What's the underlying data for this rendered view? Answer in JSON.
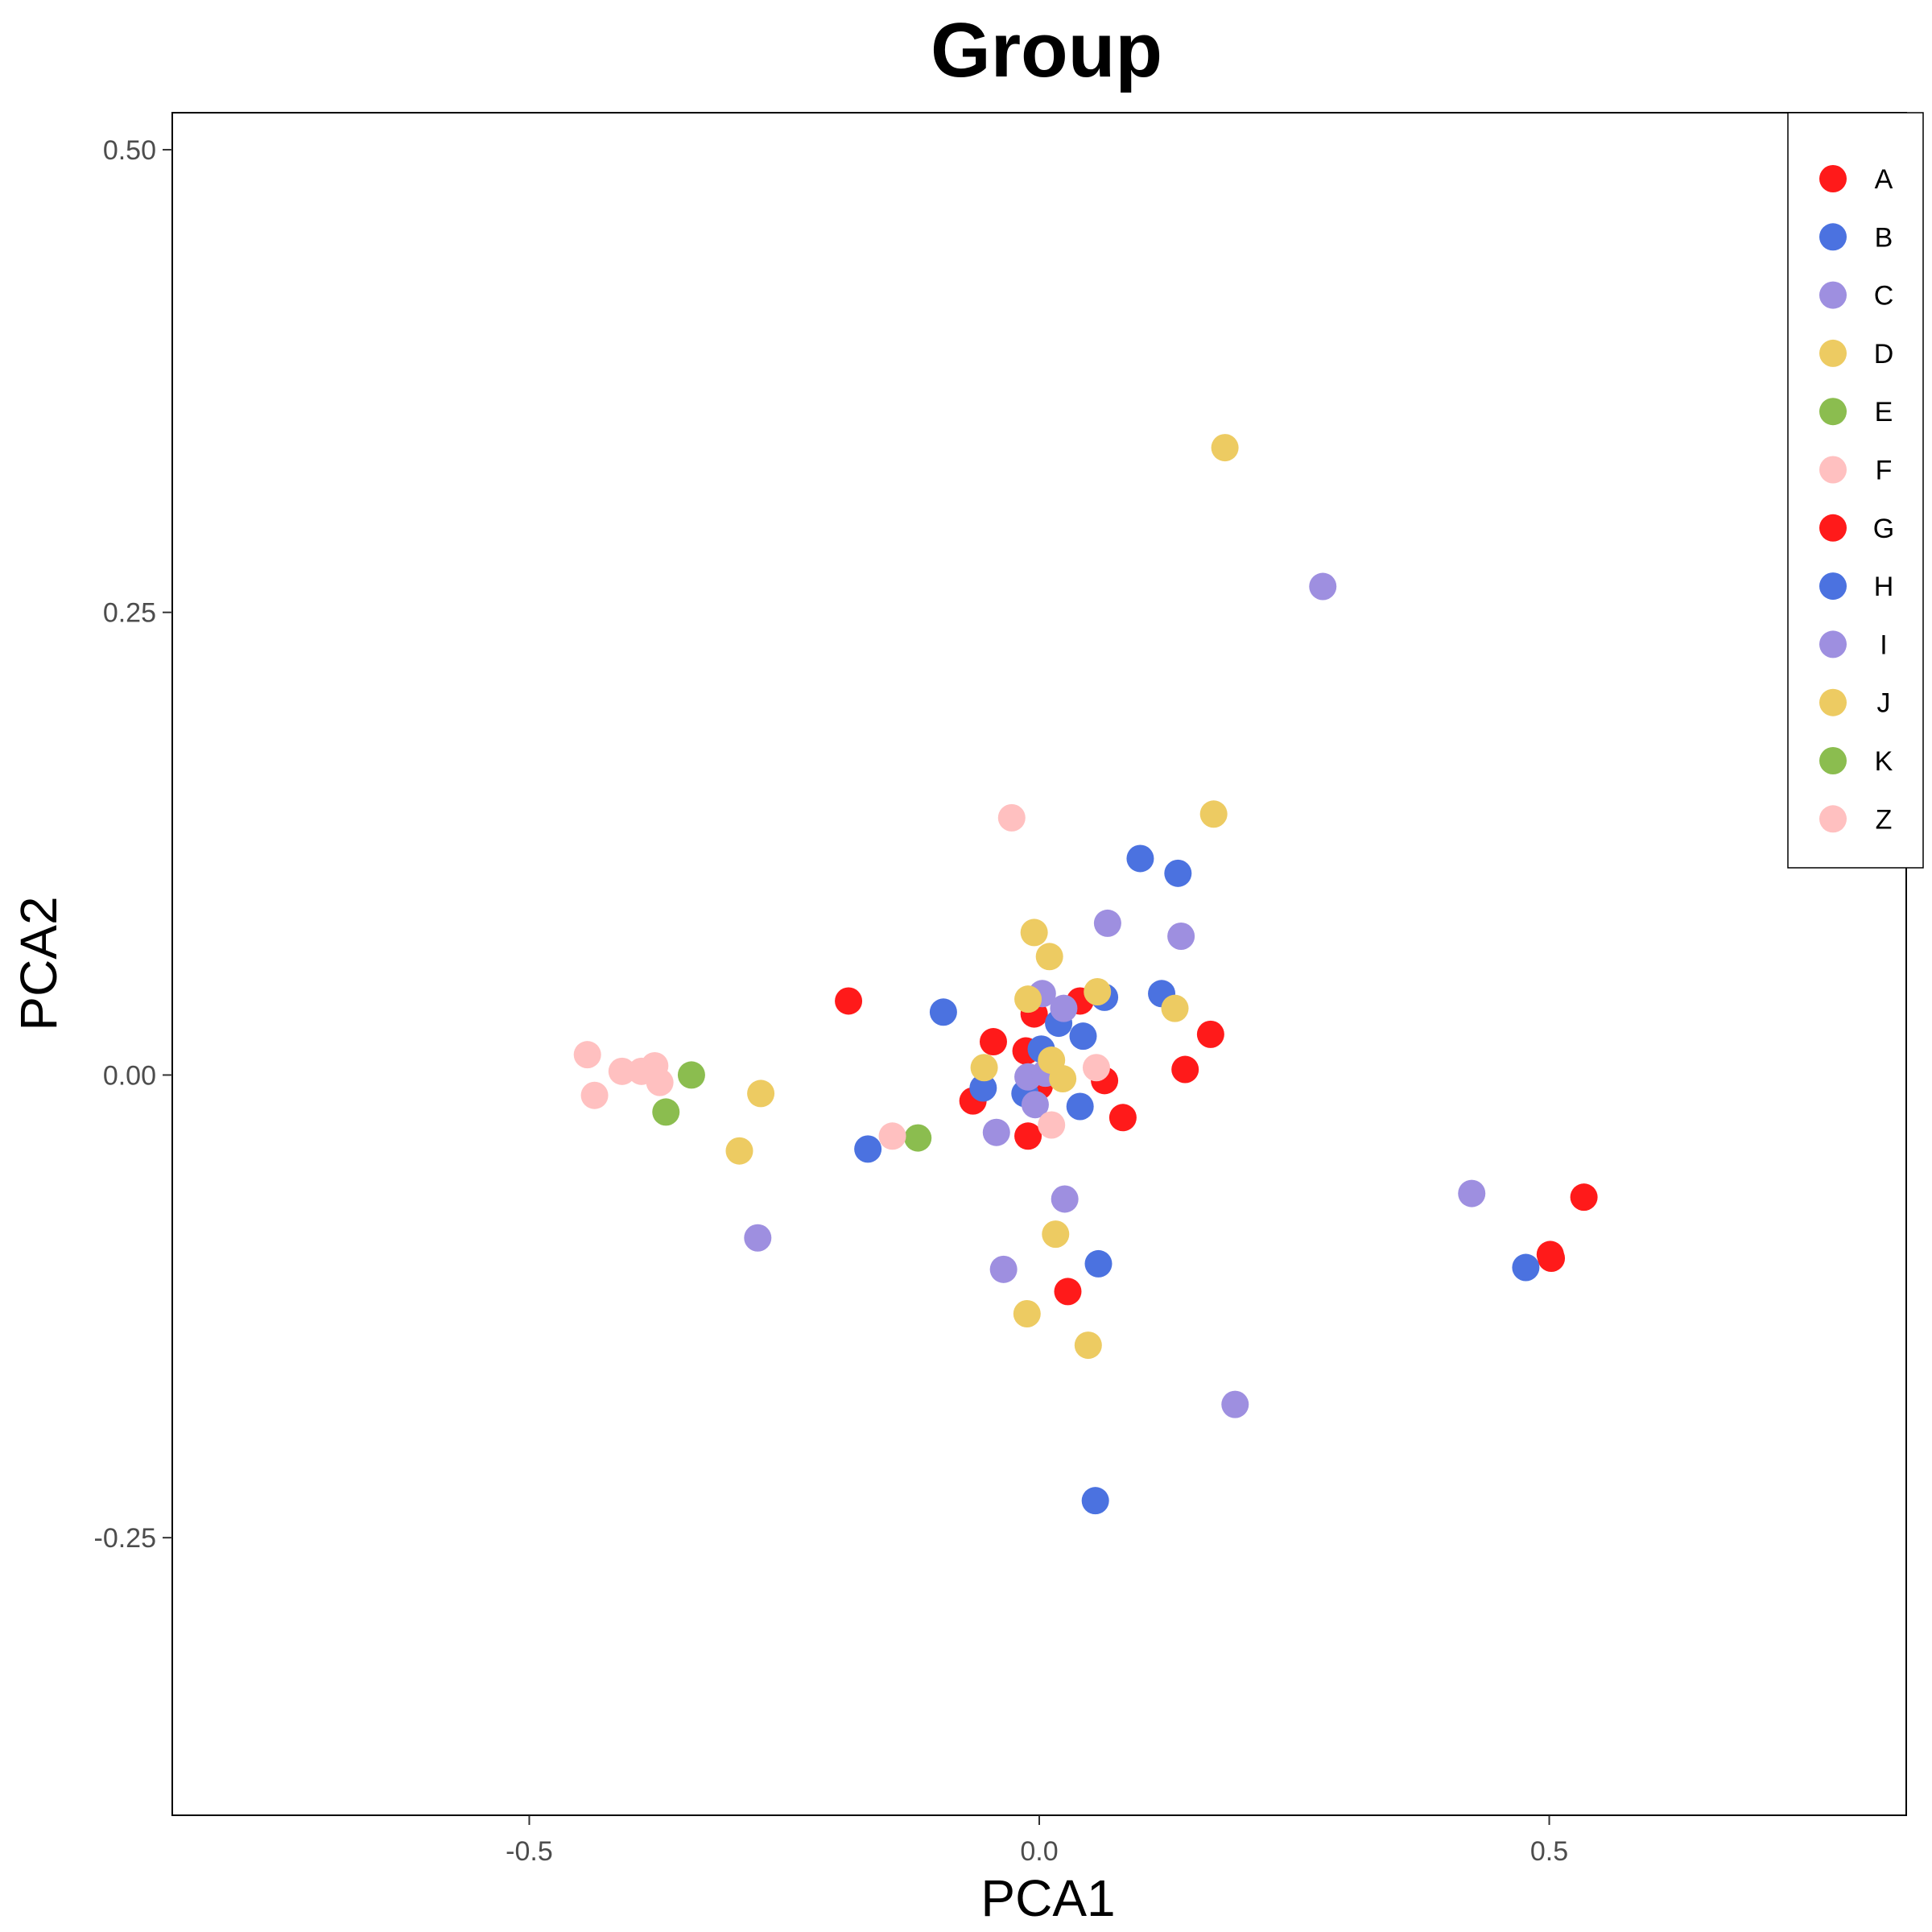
{
  "chart_data": {
    "type": "scatter",
    "title": "Group",
    "xlabel": "PCA1",
    "ylabel": "PCA2",
    "xlim": [
      -0.85,
      0.85
    ],
    "ylim": [
      -0.4,
      0.52
    ],
    "x_ticks": [
      -0.5,
      0.0,
      0.5
    ],
    "x_tick_labels": [
      "-0.5",
      "0.0",
      "0.5"
    ],
    "y_ticks": [
      -0.25,
      0.0,
      0.25,
      0.5
    ],
    "y_tick_labels": [
      "-0.25",
      "0.00",
      "0.25",
      "0.50"
    ],
    "grid": false,
    "legend_position": "top-right",
    "series": [
      {
        "name": "A",
        "color": "#FF1A1A",
        "points": [
          [
            -0.187,
            0.04
          ],
          [
            -0.045,
            0.018
          ],
          [
            -0.013,
            0.013
          ],
          [
            -0.005,
            0.033
          ],
          [
            -0.065,
            -0.014
          ],
          [
            -0.011,
            -0.033
          ],
          [
            0.04,
            0.04
          ],
          [
            0.064,
            -0.003
          ],
          [
            0.082,
            -0.023
          ],
          [
            0.168,
            0.022
          ],
          [
            0.143,
            0.003
          ],
          [
            0.028,
            -0.117
          ],
          [
            0.534,
            -0.066
          ],
          [
            0.501,
            -0.097
          ],
          [
            0.502,
            -0.099
          ],
          [
            0.0,
            -0.006
          ]
        ]
      },
      {
        "name": "B",
        "color": "#4B72E0",
        "points": [
          [
            -0.094,
            0.034
          ],
          [
            -0.055,
            -0.007
          ],
          [
            -0.168,
            -0.04
          ],
          [
            0.002,
            0.014
          ],
          [
            0.019,
            0.028
          ],
          [
            0.043,
            0.021
          ],
          [
            0.064,
            0.042
          ],
          [
            0.04,
            -0.017
          ],
          [
            -0.014,
            -0.01
          ],
          [
            0.099,
            0.117
          ],
          [
            0.136,
            0.109
          ],
          [
            0.12,
            0.044
          ],
          [
            0.058,
            -0.102
          ],
          [
            0.477,
            -0.104
          ],
          [
            0.055,
            -0.23
          ]
        ]
      },
      {
        "name": "C",
        "color": "#9E8FE0",
        "points": [
          [
            -0.276,
            -0.088
          ],
          [
            -0.042,
            -0.031
          ],
          [
            -0.035,
            -0.105
          ],
          [
            0.003,
            0.044
          ],
          [
            0.024,
            0.036
          ],
          [
            -0.011,
            -0.001
          ],
          [
            -0.004,
            -0.016
          ],
          [
            0.006,
            0.001
          ],
          [
            0.067,
            0.082
          ],
          [
            0.139,
            0.075
          ],
          [
            0.025,
            -0.067
          ],
          [
            0.278,
            0.264
          ],
          [
            0.192,
            -0.178
          ],
          [
            0.424,
            -0.064
          ]
        ]
      },
      {
        "name": "D",
        "color": "#EDCB62",
        "points": [
          [
            -0.294,
            -0.041
          ],
          [
            -0.273,
            -0.01
          ],
          [
            -0.054,
            0.004
          ],
          [
            -0.011,
            0.041
          ],
          [
            -0.005,
            0.077
          ],
          [
            0.01,
            0.064
          ],
          [
            0.023,
            -0.002
          ],
          [
            0.057,
            0.045
          ],
          [
            0.133,
            0.036
          ],
          [
            0.171,
            0.141
          ],
          [
            0.182,
            0.339
          ],
          [
            0.016,
            -0.086
          ],
          [
            -0.012,
            -0.129
          ],
          [
            0.048,
            -0.146
          ],
          [
            0.012,
            0.008
          ]
        ]
      },
      {
        "name": "E",
        "color": "#8BBD4F",
        "points": [
          [
            -0.341,
            0.0
          ],
          [
            -0.366,
            -0.02
          ],
          [
            -0.119,
            -0.034
          ]
        ]
      },
      {
        "name": "F",
        "color": "#FFC0C0",
        "points": [
          [
            -0.443,
            0.011
          ],
          [
            -0.436,
            -0.011
          ],
          [
            -0.409,
            0.002
          ],
          [
            -0.39,
            0.002
          ],
          [
            -0.377,
            0.005
          ],
          [
            -0.372,
            -0.004
          ],
          [
            -0.144,
            -0.033
          ],
          [
            -0.027,
            0.139
          ],
          [
            0.012,
            -0.027
          ],
          [
            0.056,
            0.004
          ]
        ]
      }
    ],
    "legend": [
      {
        "label": "A",
        "color": "#FF1A1A"
      },
      {
        "label": "B",
        "color": "#4B72E0"
      },
      {
        "label": "C",
        "color": "#9E8FE0"
      },
      {
        "label": "D",
        "color": "#EDCB62"
      },
      {
        "label": "E",
        "color": "#8BBD4F"
      },
      {
        "label": "F",
        "color": "#FFC0C0"
      },
      {
        "label": "G",
        "color": "#FF1A1A"
      },
      {
        "label": "H",
        "color": "#4B72E0"
      },
      {
        "label": "I",
        "color": "#9E8FE0"
      },
      {
        "label": "J",
        "color": "#EDCB62"
      },
      {
        "label": "K",
        "color": "#8BBD4F"
      },
      {
        "label": "Z",
        "color": "#FFC0C0"
      }
    ]
  }
}
